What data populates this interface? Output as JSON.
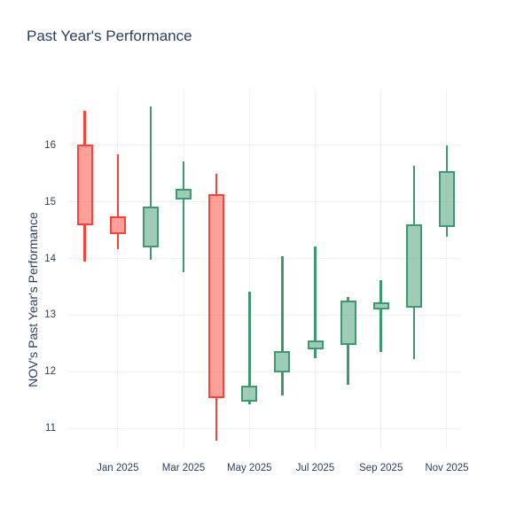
{
  "chart_data": {
    "type": "candlestick",
    "title": "Past Year's Performance",
    "ylabel": "NOV's Past Year's Performance",
    "xlabel": "",
    "x_tick_labels": [
      "Jan 2025",
      "Mar 2025",
      "May 2025",
      "Jul 2025",
      "Sep 2025",
      "Nov 2025"
    ],
    "y_ticks": [
      11,
      12,
      13,
      14,
      15,
      16
    ],
    "y_range": [
      10.64,
      17.0
    ],
    "grid": true,
    "legend": "none",
    "candles": [
      {
        "month": "Dec 2024",
        "open": 16.02,
        "high": 16.61,
        "low": 13.94,
        "close": 14.59
      },
      {
        "month": "Jan 2025",
        "open": 14.74,
        "high": 15.84,
        "low": 14.17,
        "close": 14.43
      },
      {
        "month": "Feb 2025",
        "open": 14.19,
        "high": 16.69,
        "low": 13.97,
        "close": 14.91
      },
      {
        "month": "Mar 2025",
        "open": 15.04,
        "high": 15.72,
        "low": 13.76,
        "close": 15.23
      },
      {
        "month": "Apr 2025",
        "open": 15.14,
        "high": 15.49,
        "low": 10.78,
        "close": 11.54
      },
      {
        "month": "May 2025",
        "open": 11.47,
        "high": 13.41,
        "low": 11.42,
        "close": 11.75
      },
      {
        "month": "Jun 2025",
        "open": 11.99,
        "high": 14.04,
        "low": 11.58,
        "close": 12.37
      },
      {
        "month": "Jul 2025",
        "open": 12.4,
        "high": 14.21,
        "low": 12.24,
        "close": 12.55
      },
      {
        "month": "Aug 2025",
        "open": 12.47,
        "high": 13.32,
        "low": 11.76,
        "close": 13.26
      },
      {
        "month": "Sep 2025",
        "open": 13.1,
        "high": 13.61,
        "low": 12.34,
        "close": 13.23
      },
      {
        "month": "Oct 2025",
        "open": 13.13,
        "high": 15.63,
        "low": 12.22,
        "close": 14.6
      },
      {
        "month": "Nov 2025",
        "open": 14.56,
        "high": 16.0,
        "low": 14.38,
        "close": 15.55
      }
    ],
    "colors": {
      "increasing_line": "#3d9970",
      "increasing_fill": "rgba(61,153,112,0.5)",
      "decreasing_line": "#ff4136",
      "decreasing_fill": "rgba(255,65,54,0.5)",
      "grid": "#ecf0f8",
      "text": "#2a3f5f",
      "background": "#ffffff"
    }
  }
}
